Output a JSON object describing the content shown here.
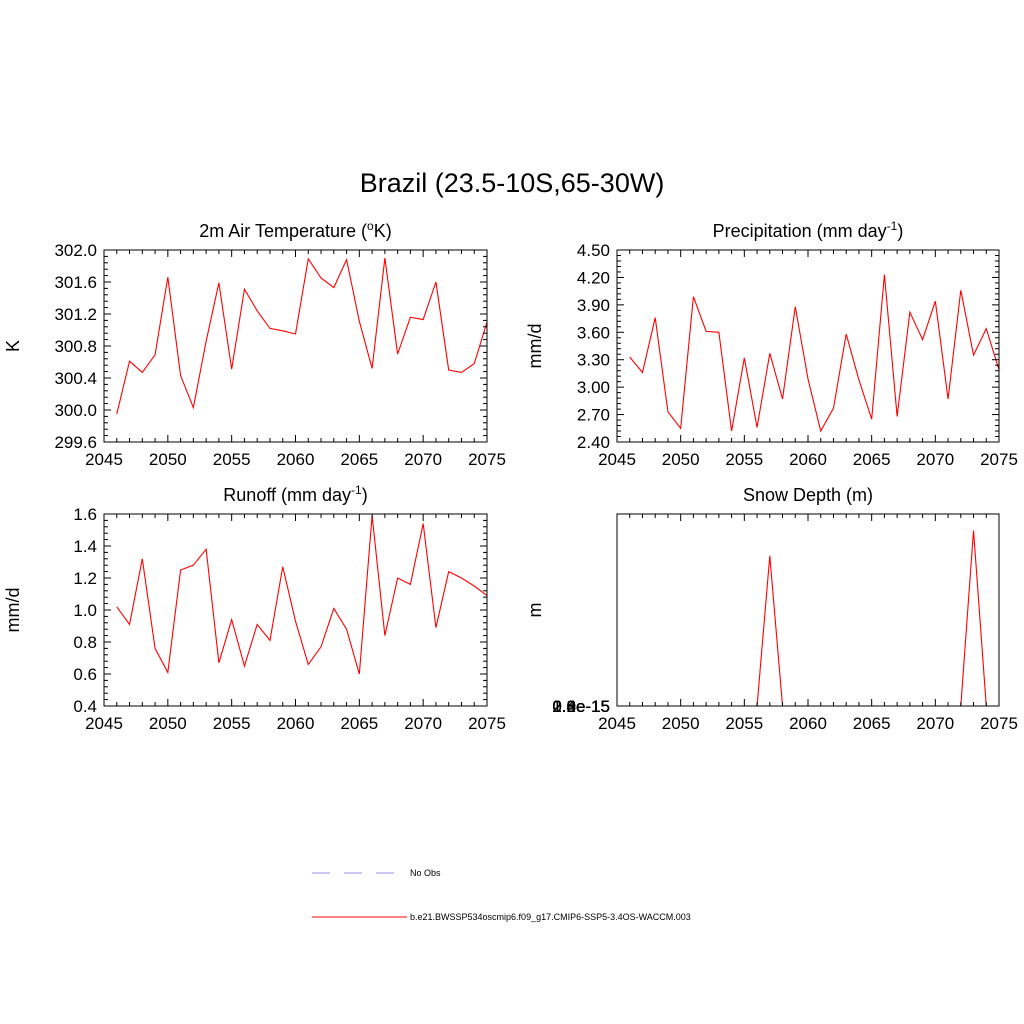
{
  "figure_title": "Brazil (23.5-10S,65-30W)",
  "colors": {
    "model": "#ff0000",
    "obs": "#a8a8e8",
    "axis": "#000000"
  },
  "legend": {
    "obs_label": "No Obs",
    "model_label": "b.e21.BWSSP534oscmip6.f09_g17.CMIP6-SSP5-3.4OS-WACCM.003"
  },
  "chart_data": [
    {
      "type": "line",
      "title": "2m Air Temperature (oK)",
      "title_parts": {
        "pre": "2m Air Temperature (",
        "sup": "o",
        "post": "K)"
      },
      "xlabel": "",
      "ylabel": "K",
      "xlim": [
        2045,
        2075
      ],
      "ylim": [
        299.6,
        302.0
      ],
      "xticks": [
        "2045",
        "2050",
        "2055",
        "2060",
        "2065",
        "2070",
        "2075"
      ],
      "yticks": [
        "299.6",
        "300.0",
        "300.4",
        "300.8",
        "301.2",
        "301.6",
        "302.0"
      ],
      "series": [
        {
          "name": "b.e21.BWSSP534oscmip6.f09_g17.CMIP6-SSP5-3.4OS-WACCM.003",
          "x": [
            2046,
            2047,
            2048,
            2049,
            2050,
            2051,
            2052,
            2053,
            2054,
            2055,
            2056,
            2057,
            2058,
            2059,
            2060,
            2061,
            2062,
            2063,
            2064,
            2065,
            2066,
            2067,
            2068,
            2069,
            2070,
            2071,
            2072,
            2073,
            2074,
            2075
          ],
          "values": [
            299.95,
            300.61,
            300.47,
            300.69,
            301.66,
            300.43,
            300.03,
            300.86,
            301.59,
            300.51,
            301.51,
            301.24,
            301.02,
            300.99,
            300.95,
            301.89,
            301.65,
            301.53,
            301.88,
            301.11,
            300.52,
            301.9,
            300.7,
            301.16,
            301.13,
            301.6,
            300.5,
            300.47,
            300.58,
            301.1
          ]
        }
      ]
    },
    {
      "type": "line",
      "title": "Precipitation (mm day-1)",
      "title_parts": {
        "pre": "Precipitation (mm day",
        "sup": "-1",
        "post": ")"
      },
      "xlabel": "",
      "ylabel": "mm/d",
      "xlim": [
        2045,
        2075
      ],
      "ylim": [
        2.4,
        4.5
      ],
      "xticks": [
        "2045",
        "2050",
        "2055",
        "2060",
        "2065",
        "2070",
        "2075"
      ],
      "yticks": [
        "2.40",
        "2.70",
        "3.00",
        "3.30",
        "3.60",
        "3.90",
        "4.20",
        "4.50"
      ],
      "series": [
        {
          "name": "b.e21.BWSSP534oscmip6.f09_g17.CMIP6-SSP5-3.4OS-WACCM.003",
          "x": [
            2046,
            2047,
            2048,
            2049,
            2050,
            2051,
            2052,
            2053,
            2054,
            2055,
            2056,
            2057,
            2058,
            2059,
            2060,
            2061,
            2062,
            2063,
            2064,
            2065,
            2066,
            2067,
            2068,
            2069,
            2070,
            2071,
            2072,
            2073,
            2074,
            2075
          ],
          "values": [
            3.33,
            3.16,
            3.76,
            2.73,
            2.55,
            3.99,
            3.61,
            3.6,
            2.52,
            3.32,
            2.56,
            3.37,
            2.87,
            3.88,
            3.09,
            2.52,
            2.77,
            3.58,
            3.08,
            2.65,
            4.23,
            2.68,
            3.82,
            3.52,
            3.94,
            2.87,
            4.06,
            3.35,
            3.64,
            3.19
          ]
        }
      ]
    },
    {
      "type": "line",
      "title": "Runoff (mm day-1)",
      "title_parts": {
        "pre": "Runoff (mm day",
        "sup": "-1",
        "post": ")"
      },
      "xlabel": "",
      "ylabel": "mm/d",
      "xlim": [
        2045,
        2075
      ],
      "ylim": [
        0.4,
        1.6
      ],
      "xticks": [
        "2045",
        "2050",
        "2055",
        "2060",
        "2065",
        "2070",
        "2075"
      ],
      "yticks": [
        "0.4",
        "0.6",
        "0.8",
        "1.0",
        "1.2",
        "1.4",
        "1.6"
      ],
      "series": [
        {
          "name": "b.e21.BWSSP534oscmip6.f09_g17.CMIP6-SSP5-3.4OS-WACCM.003",
          "x": [
            2046,
            2047,
            2048,
            2049,
            2050,
            2051,
            2052,
            2053,
            2054,
            2055,
            2056,
            2057,
            2058,
            2059,
            2060,
            2061,
            2062,
            2063,
            2064,
            2065,
            2066,
            2067,
            2068,
            2069,
            2070,
            2071,
            2072,
            2073,
            2074,
            2075
          ],
          "values": [
            1.02,
            0.91,
            1.32,
            0.76,
            0.61,
            1.25,
            1.28,
            1.38,
            0.67,
            0.94,
            0.65,
            0.91,
            0.81,
            1.27,
            0.93,
            0.66,
            0.77,
            1.01,
            0.88,
            0.6,
            1.59,
            0.84,
            1.2,
            1.16,
            1.54,
            0.89,
            1.24,
            1.2,
            1.15,
            1.09
          ]
        }
      ]
    },
    {
      "type": "line",
      "title": "Snow Depth (m)",
      "title_parts": {
        "pre": "Snow Depth (m)",
        "sup": "",
        "post": ""
      },
      "xlabel": "",
      "ylabel": "m",
      "xlim": [
        2045,
        2075
      ],
      "ylim": [
        0,
        2.8e-15
      ],
      "xticks": [
        "2045",
        "2050",
        "2055",
        "2060",
        "2065",
        "2070",
        "2075"
      ],
      "yticks": [
        "0.0e-15",
        "0.4e-15",
        "0.8e-15",
        "1.2e-15",
        "1.6e-15",
        "2.0e-15",
        "2.4e-15",
        "2.8e-15"
      ],
      "series": [
        {
          "name": "b.e21.BWSSP534oscmip6.f09_g17.CMIP6-SSP5-3.4OS-WACCM.003",
          "x": [
            2046,
            2047,
            2048,
            2049,
            2050,
            2051,
            2052,
            2053,
            2054,
            2055,
            2056,
            2057,
            2058,
            2059,
            2060,
            2061,
            2062,
            2063,
            2064,
            2065,
            2066,
            2067,
            2068,
            2069,
            2070,
            2071,
            2072,
            2073,
            2074,
            2075
          ],
          "values": [
            0,
            0,
            0,
            0,
            0,
            0,
            0,
            0,
            0,
            0,
            0,
            2.19e-15,
            0,
            -1e-16,
            -1e-16,
            -1e-16,
            -1e-16,
            -1e-16,
            -1e-16,
            -1e-16,
            -1e-16,
            -1e-16,
            -1e-16,
            -1e-16,
            -1e-16,
            0,
            0,
            2.56e-15,
            0,
            -1e-16
          ]
        }
      ]
    }
  ]
}
